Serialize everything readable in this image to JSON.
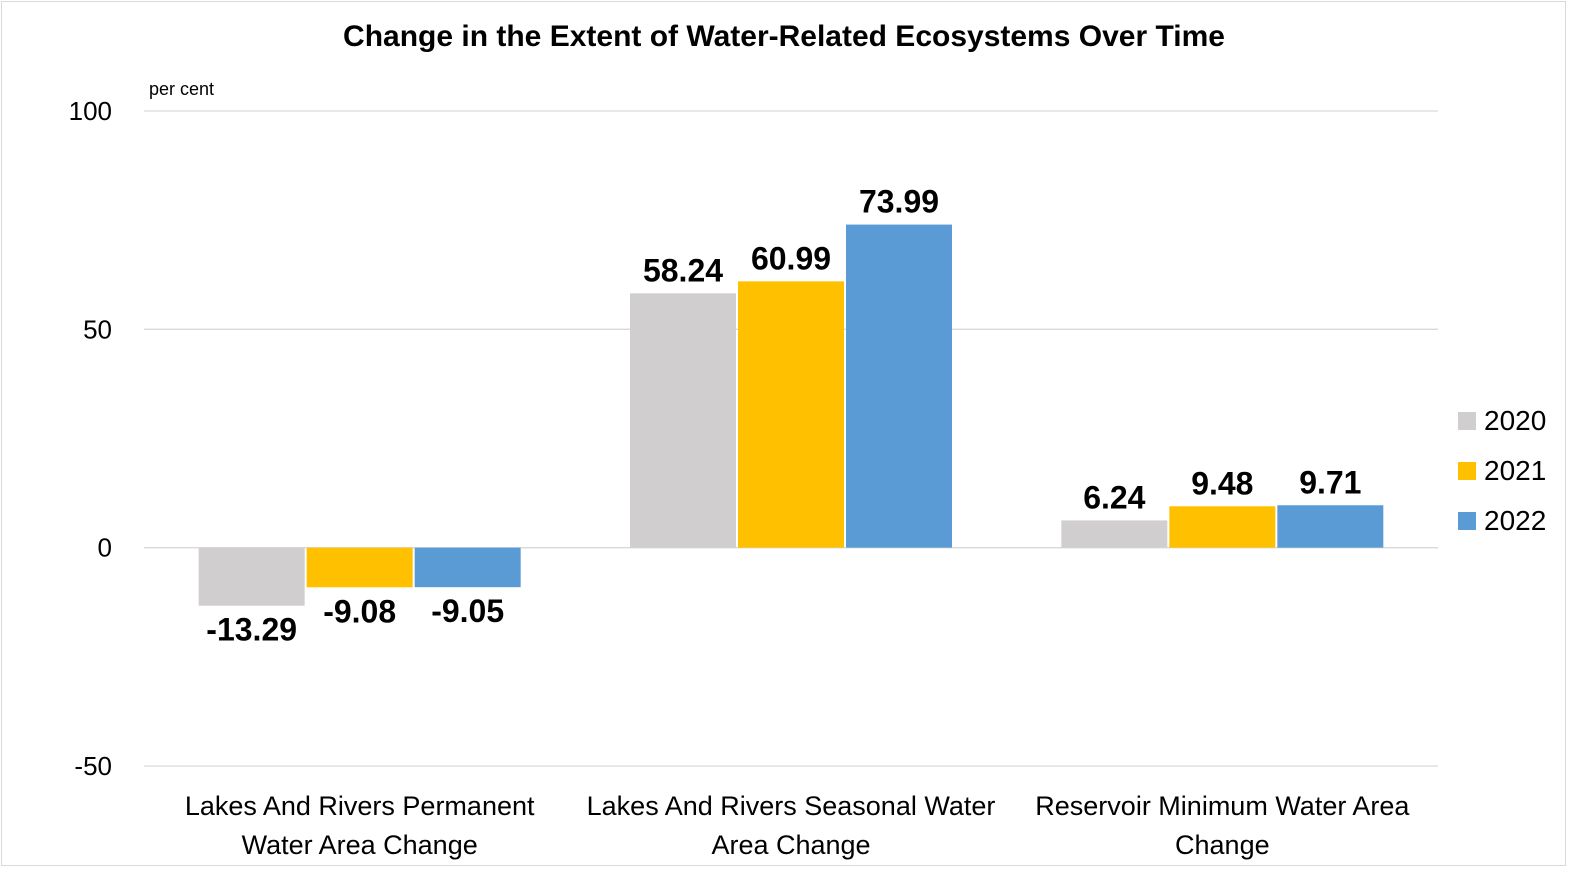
{
  "chart_data": {
    "type": "bar",
    "title": "Change in the Extent of Water-Related Ecosystems Over Time",
    "ylabel": "per cent",
    "xlabel": "",
    "ylim": [
      -50,
      100
    ],
    "yticks": [
      100,
      50,
      0,
      -50
    ],
    "grid": true,
    "legend_position": "right",
    "categories": [
      [
        "Lakes And Rivers Permanent",
        "Water Area Change"
      ],
      [
        "Lakes And Rivers Seasonal Water",
        "Area Change"
      ],
      [
        "Reservoir Minimum Water Area",
        "Change"
      ]
    ],
    "series": [
      {
        "name": "2020",
        "color": "#d0cece",
        "values": [
          -13.29,
          58.24,
          6.24
        ]
      },
      {
        "name": "2021",
        "color": "#ffc000",
        "values": [
          -9.08,
          60.99,
          9.48
        ]
      },
      {
        "name": "2022",
        "color": "#5b9bd5",
        "values": [
          -9.05,
          73.99,
          9.71
        ]
      }
    ]
  }
}
